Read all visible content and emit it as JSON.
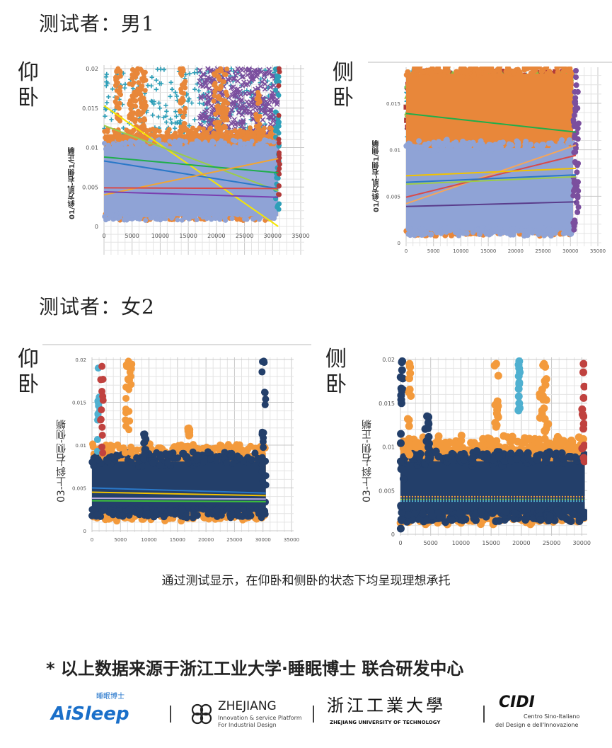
{
  "sections": [
    {
      "title": "测试者：男1"
    },
    {
      "title": "测试者：女2"
    }
  ],
  "chart_labels": {
    "supine": "仰卧",
    "side": "侧卧"
  },
  "caption": "通过测试显示，在仰卧和侧卧的状态下均呈现理想承托",
  "source_note": "* 以上数据来源于浙江工业大学·睡眠博士  联合研发中心",
  "logos": [
    {
      "name": "AiSleep",
      "sub": "睡眠博士",
      "color": "#1a6fc9"
    },
    {
      "name": "ZHEJIANG",
      "sub1": "Innovation & service Platform",
      "sub2": "For Industrial Design"
    },
    {
      "name": "浙江工業大學",
      "sub": "ZHEJIANG UNIVERSITY OF TECHNOLOGY"
    },
    {
      "name": "CIDI",
      "sub1": "Centro Sino-Italiano",
      "sub2": "del Design e dell'Innovazione"
    }
  ],
  "chart_data": [
    {
      "type": "scatter",
      "panel": "男1 仰卧",
      "ylabel": "01/斜方肌-右侧1/正躺",
      "xlim": [
        0,
        35000
      ],
      "ylim": [
        0,
        0.02
      ],
      "xticks": [
        "0",
        "5000",
        "10000",
        "15000",
        "20000",
        "25000",
        "30000",
        "35000"
      ],
      "yticks": [
        "0",
        "0.005",
        "0.01",
        "0.015",
        "0.02"
      ],
      "grid": true,
      "clouds": [
        {
          "color": "#2e9fb8",
          "marker": "cross",
          "x": [
            0,
            31000
          ],
          "y": [
            0.004,
            0.02
          ]
        },
        {
          "color": "#7b4f9e",
          "marker": "x",
          "x": [
            17000,
            31000
          ],
          "y": [
            0.008,
            0.02
          ]
        },
        {
          "color": "#e8873a",
          "marker": "circle",
          "x": [
            0,
            31000
          ],
          "y": [
            0.001,
            0.012
          ]
        },
        {
          "color": "#8fa3d6",
          "marker": "circle",
          "x": [
            0,
            31000
          ],
          "y": [
            0.001,
            0.0105
          ]
        }
      ],
      "spikes": [
        {
          "color": "#e8873a",
          "x": [
            2000,
            3000
          ],
          "y": [
            0.011,
            0.02
          ]
        },
        {
          "color": "#e8873a",
          "x": [
            4500,
            7500
          ],
          "y": [
            0.011,
            0.02
          ]
        },
        {
          "color": "#e8873a",
          "x": [
            13500,
            14500
          ],
          "y": [
            0.011,
            0.02
          ]
        },
        {
          "color": "#e8873a",
          "x": [
            19500,
            22000
          ],
          "y": [
            0.011,
            0.02
          ]
        },
        {
          "color": "#e8873a",
          "x": [
            27000,
            27800
          ],
          "y": [
            0.011,
            0.017
          ]
        },
        {
          "color": "#2e9fb8",
          "x": [
            30500,
            31200
          ],
          "y": [
            0.001,
            0.02
          ]
        },
        {
          "color": "#b03a3a",
          "x": [
            31000,
            31300
          ],
          "y": [
            0.004,
            0.02
          ]
        }
      ],
      "trendlines": [
        {
          "color": "#f5e600",
          "y_start": 0.0153,
          "y_end": 0.0
        },
        {
          "color": "#9ccc4a",
          "y_start": 0.0128,
          "y_end": 0.0045
        },
        {
          "color": "#1fae4b",
          "y_start": 0.0088,
          "y_end": 0.0068
        },
        {
          "color": "#2a78c8",
          "y_start": 0.0083,
          "y_end": 0.0048
        },
        {
          "color": "#f2a533",
          "y_start": 0.004,
          "y_end": 0.0086
        },
        {
          "color": "#d84a4a",
          "y_start": 0.0049,
          "y_end": 0.0048
        },
        {
          "color": "#7a3fb0",
          "y_start": 0.0044,
          "y_end": 0.0037
        }
      ],
      "trend_x": [
        0,
        31000
      ]
    },
    {
      "type": "scatter",
      "panel": "男1 侧卧",
      "ylabel": "01/斜方肌-右侧1/侧躺",
      "xlim": [
        0,
        35000
      ],
      "ylim": [
        0,
        0.0185
      ],
      "xticks": [
        "0",
        "5000",
        "10000",
        "15000",
        "20000",
        "25000",
        "30000",
        "35000"
      ],
      "yticks": [
        "0",
        "0.005",
        "0.01",
        "0.015"
      ],
      "grid": true,
      "clouds": [
        {
          "color": "#2e9fb8",
          "marker": "cross",
          "x": [
            0,
            30500
          ],
          "y": [
            0.011,
            0.0185
          ]
        },
        {
          "color": "#b03a3a",
          "marker": "square",
          "x": [
            0,
            30500
          ],
          "y": [
            0.012,
            0.0185
          ]
        },
        {
          "color": "#8cbf3f",
          "marker": "triangle",
          "x": [
            0,
            30500
          ],
          "y": [
            0.013,
            0.0185
          ]
        },
        {
          "color": "#e8873a",
          "marker": "circle",
          "x": [
            0,
            30500
          ],
          "y": [
            0.001,
            0.0185
          ]
        },
        {
          "color": "#8fa3d6",
          "marker": "circle",
          "x": [
            0,
            30500
          ],
          "y": [
            0.001,
            0.0105
          ]
        }
      ],
      "spikes": [
        {
          "color": "#7b4f9e",
          "x": [
            30500,
            31500
          ],
          "y": [
            0.001,
            0.0185
          ]
        }
      ],
      "trendlines": [
        {
          "color": "#1fae4b",
          "y_start": 0.0139,
          "y_end": 0.0119
        },
        {
          "color": "#f5a55a",
          "y_start": 0.0042,
          "y_end": 0.0105
        },
        {
          "color": "#d84a4a",
          "y_start": 0.0049,
          "y_end": 0.0094
        },
        {
          "color": "#f2c200",
          "y_start": 0.0072,
          "y_end": 0.008
        },
        {
          "color": "#2a78c8",
          "y_start": 0.0065,
          "y_end": 0.0073
        },
        {
          "color": "#9ccc4a",
          "y_start": 0.0063,
          "y_end": 0.0071
        },
        {
          "color": "#5a3d8c",
          "y_start": 0.0039,
          "y_end": 0.0044
        }
      ],
      "trend_x": [
        0,
        31000
      ]
    },
    {
      "type": "scatter",
      "panel": "女2 仰卧",
      "ylabel": "03-上斜-右侧-侧躺",
      "xlim": [
        0,
        35000
      ],
      "ylim": [
        0,
        0.02
      ],
      "xticks": [
        "0",
        "5000",
        "10000",
        "15000",
        "20000",
        "25000",
        "30000",
        "35000"
      ],
      "yticks": [
        "0",
        "0.005",
        "0.01",
        "0.015",
        "0.02"
      ],
      "grid": true,
      "clouds": [
        {
          "color": "#f39a3c",
          "marker": "circle",
          "x": [
            0,
            30500
          ],
          "y": [
            0.0015,
            0.0095
          ]
        },
        {
          "color": "#233f6a",
          "marker": "circle",
          "x": [
            0,
            30500
          ],
          "y": [
            0.0018,
            0.0085
          ]
        }
      ],
      "spikes": [
        {
          "color": "#4fb0d0",
          "x": [
            800,
            1400
          ],
          "y": [
            0.008,
            0.019
          ]
        },
        {
          "color": "#c0423f",
          "x": [
            1500,
            2000
          ],
          "y": [
            0.009,
            0.0192
          ]
        },
        {
          "color": "#f39a3c",
          "x": [
            5800,
            7000
          ],
          "y": [
            0.009,
            0.0198
          ]
        },
        {
          "color": "#f39a3c",
          "x": [
            16800,
            17200
          ],
          "y": [
            0.011,
            0.012
          ]
        },
        {
          "color": "#233f6a",
          "x": [
            9000,
            9500
          ],
          "y": [
            0.008,
            0.0113
          ]
        },
        {
          "color": "#233f6a",
          "x": [
            29800,
            30500
          ],
          "y": [
            0.002,
            0.0198
          ]
        }
      ],
      "trendlines": [
        {
          "color": "#2a78c8",
          "y_start": 0.005,
          "y_end": 0.0044
        },
        {
          "color": "#f2c200",
          "y_start": 0.0045,
          "y_end": 0.0041
        },
        {
          "color": "#b7a8e0",
          "y_start": 0.0038,
          "y_end": 0.0037
        },
        {
          "color": "#3cbf3c",
          "y_start": 0.0035,
          "y_end": 0.0034
        }
      ],
      "trend_x": [
        0,
        30500
      ]
    },
    {
      "type": "scatter",
      "panel": "女2 侧卧",
      "ylabel": "03-上斜-右侧-正躺",
      "xlim": [
        0,
        35000
      ],
      "ylim": [
        0,
        0.02
      ],
      "xticks": [
        "0",
        "5000",
        "10000",
        "15000",
        "20000",
        "25000",
        "30000"
      ],
      "yticks": [
        "0",
        "0.005",
        "0.01",
        "0.015",
        "0.02"
      ],
      "grid": true,
      "clouds": [
        {
          "color": "#f39a3c",
          "marker": "circle",
          "x": [
            0,
            30500
          ],
          "y": [
            0.0015,
            0.0105
          ]
        },
        {
          "color": "#233f6a",
          "marker": "circle",
          "x": [
            0,
            30500
          ],
          "y": [
            0.0018,
            0.0088
          ]
        }
      ],
      "spikes": [
        {
          "color": "#233f6a",
          "x": [
            0,
            600
          ],
          "y": [
            0.0,
            0.0198
          ]
        },
        {
          "color": "#f39a3c",
          "x": [
            1200,
            1800
          ],
          "y": [
            0.009,
            0.0195
          ]
        },
        {
          "color": "#233f6a",
          "x": [
            4000,
            4800
          ],
          "y": [
            0.008,
            0.0135
          ]
        },
        {
          "color": "#f39a3c",
          "x": [
            15500,
            16200
          ],
          "y": [
            0.012,
            0.0195
          ]
        },
        {
          "color": "#4fb0d0",
          "x": [
            19500,
            19800
          ],
          "y": [
            0.014,
            0.0198
          ]
        },
        {
          "color": "#f39a3c",
          "x": [
            23000,
            24500
          ],
          "y": [
            0.011,
            0.0195
          ]
        },
        {
          "color": "#c0423f",
          "x": [
            30000,
            30600
          ],
          "y": [
            0.008,
            0.0195
          ]
        }
      ],
      "trendlines": [
        {
          "color": "#f39a3c",
          "y_start": 0.0043,
          "y_end": 0.0043,
          "dotted": true
        },
        {
          "color": "#9ccc4a",
          "y_start": 0.004,
          "y_end": 0.004,
          "dotted": true
        },
        {
          "color": "#4fb0d0",
          "y_start": 0.0038,
          "y_end": 0.0038,
          "dotted": true
        }
      ],
      "trend_x": [
        0,
        30500
      ]
    }
  ]
}
